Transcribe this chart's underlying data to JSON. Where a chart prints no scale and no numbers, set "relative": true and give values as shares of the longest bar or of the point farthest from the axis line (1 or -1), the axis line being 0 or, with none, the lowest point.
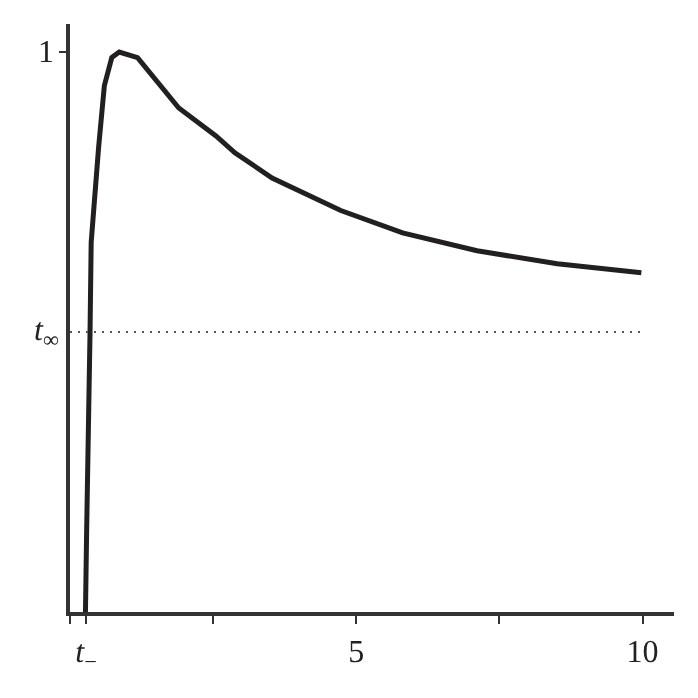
{
  "chart_data": {
    "type": "line",
    "x": [
      0.27,
      0.29,
      0.35,
      0.37,
      0.5,
      0.6,
      0.73,
      0.86,
      1.18,
      1.9,
      2.55,
      2.88,
      3.53,
      4.73,
      5.81,
      7.11,
      8.51,
      9.98
    ],
    "series": [
      {
        "color": "#231f20",
        "values": [
          0,
          0.14,
          0.5,
          0.66,
          0.83,
          0.94,
          0.99,
          1.0,
          0.99,
          0.9,
          0.85,
          0.82,
          0.775,
          0.717,
          0.677,
          0.645,
          0.622,
          0.606
        ]
      }
    ],
    "xlim": [
      0,
      10.55
    ],
    "relative": true,
    "annotations": [
      "1"
    ],
    "xticks": [
      {
        "value": 0,
        "label": null
      },
      {
        "value": 0.28,
        "label": "t$_{−}$"
      },
      {
        "value": 2.5,
        "label": null
      },
      5,
      {
        "value": 7.5,
        "label": null
      },
      10
    ],
    "ref_lines": [
      {
        "axis": "y",
        "value": 0.5,
        "label": "t$_{∞}$",
        "line_style": "dotted",
        "color": "#555555"
      }
    ],
    "marker": "none",
    "line_style": "solid"
  }
}
